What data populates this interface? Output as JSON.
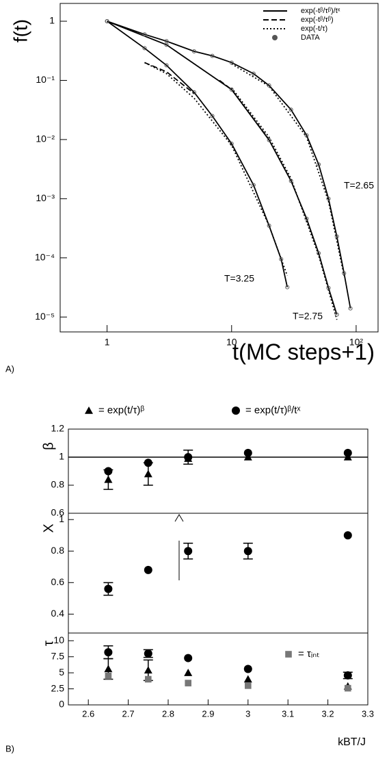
{
  "chart_data": [
    {
      "type": "line",
      "panel_label": "A)",
      "x_label": "t(MC steps+1)",
      "y_label": "f(t)",
      "xscale": "log",
      "yscale": "log",
      "xlim": [
        0.42,
        150
      ],
      "ylim": [
        5.6e-06,
        2
      ],
      "xticks": [
        1,
        10,
        {
          "value": 100,
          "label": "10²"
        }
      ],
      "yticks": [
        1,
        {
          "value": 0.1,
          "label": "10⁻¹"
        },
        {
          "value": 0.01,
          "label": "10⁻²"
        },
        {
          "value": 0.001,
          "label": "10⁻³"
        },
        {
          "value": 0.0001,
          "label": "10⁻⁴"
        },
        {
          "value": 1e-05,
          "label": "10⁻⁵"
        }
      ],
      "annotations": [
        "T=2.65",
        "T=3.25",
        "T=2.75"
      ],
      "series": [
        {
          "name": "exp(-tᵝ/τᵝ)/tˣ",
          "dash": "solid",
          "color": "#000",
          "curves": [
            {
              "x": [
                1,
                2,
                3,
                5,
                7,
                10,
                15,
                20,
                30,
                40,
                50,
                60,
                70,
                80,
                90
              ],
              "values": [
                1,
                0.6,
                0.46,
                0.31,
                0.26,
                0.2,
                0.13,
                0.082,
                0.032,
                0.0118,
                0.0038,
                0.001,
                0.00023,
                5.5e-05,
                1.4e-05
              ]
            },
            {
              "x": [
                1,
                3,
                10,
                20,
                30,
                40,
                50,
                60,
                70
              ],
              "values": [
                1,
                0.4,
                0.07,
                0.0098,
                0.002,
                0.00046,
                0.00012,
                3.1e-05,
                1.1e-05
              ]
            },
            {
              "x": [
                1,
                2,
                3,
                5,
                7,
                10,
                15,
                20,
                25,
                28
              ],
              "values": [
                1,
                0.35,
                0.18,
                0.063,
                0.025,
                0.0085,
                0.0017,
                0.00035,
                9.5e-05,
                3.2e-05
              ]
            }
          ]
        },
        {
          "name": "exp(-tᵝ/τᵝ)",
          "dash": "dashed",
          "color": "#000",
          "curves": [
            {
              "x": [
                2,
                3,
                5
              ],
              "values": [
                0.2,
                0.14,
                0.06
              ]
            },
            {
              "x": [
                8,
                10,
                20
              ],
              "values": [
                0.1,
                0.07,
                0.01
              ]
            }
          ]
        },
        {
          "name": "exp(-t/τ)",
          "dash": "dotted",
          "color": "#000",
          "curves": [
            {
              "x": [
                2,
                3,
                5,
                10,
                20,
                28
              ],
              "values": [
                0.2,
                0.13,
                0.05,
                0.008,
                0.00035,
                5e-05
              ]
            },
            {
              "x": [
                10,
                20,
                30,
                50,
                70
              ],
              "values": [
                0.075,
                0.011,
                0.0022,
                0.00011,
                9e-06
              ]
            },
            {
              "x": [
                10,
                20,
                40,
                60,
                80
              ],
              "values": [
                0.19,
                0.08,
                0.011,
                0.0009,
                5e-05
              ]
            }
          ]
        },
        {
          "name": "DATA",
          "marker": "circle",
          "color": "#555",
          "curves": [
            {
              "x": [
                1,
                2,
                3,
                5,
                7,
                10,
                15,
                20,
                30,
                40,
                50,
                60,
                70,
                80,
                90
              ],
              "values": [
                1,
                0.6,
                0.46,
                0.31,
                0.26,
                0.2,
                0.13,
                0.082,
                0.032,
                0.0118,
                0.0038,
                0.001,
                0.00023,
                5.5e-05,
                1.4e-05
              ]
            },
            {
              "x": [
                1,
                3,
                10,
                20,
                30,
                40,
                50,
                60,
                70
              ],
              "values": [
                1,
                0.4,
                0.07,
                0.0098,
                0.002,
                0.00046,
                0.00012,
                3.1e-05,
                1.1e-05
              ]
            },
            {
              "x": [
                1,
                2,
                3,
                5,
                7,
                10,
                15,
                20,
                25,
                28
              ],
              "values": [
                1,
                0.35,
                0.18,
                0.063,
                0.025,
                0.0085,
                0.0017,
                0.00035,
                9.5e-05,
                3.2e-05
              ]
            }
          ]
        }
      ]
    },
    {
      "type": "scatter",
      "panel_label": "B)",
      "y_label": "β",
      "xlim": [
        2.55,
        3.3
      ],
      "ylim": [
        0.6,
        1.2
      ],
      "yticks": [
        0.6,
        0.8,
        1,
        1.2
      ],
      "reference_line": 1,
      "x": [
        2.65,
        2.75,
        2.85,
        3.0,
        3.25
      ],
      "series": [
        {
          "name": "= exp(t/τ)ᵝ",
          "marker": "triangle",
          "color": "#000",
          "values": [
            0.84,
            0.88,
            0.99,
            1.0,
            1.0
          ],
          "errors": [
            0.07,
            0.08,
            null,
            null,
            null
          ]
        },
        {
          "name": "= exp(t/τ)ᵝ/tˣ",
          "marker": "circle",
          "color": "#000",
          "values": [
            0.9,
            0.96,
            1.0,
            1.03,
            1.03
          ],
          "errors": [
            null,
            null,
            0.05,
            null,
            null
          ]
        }
      ]
    },
    {
      "type": "scatter",
      "y_label": "X",
      "xlim": [
        2.55,
        3.3
      ],
      "ylim": [
        0.28,
        1.04
      ],
      "yticks": [
        0.4,
        0.6,
        0.8,
        1
      ],
      "x": [
        2.65,
        2.75,
        2.85,
        3.0,
        3.25
      ],
      "series": [
        {
          "marker": "circle",
          "color": "#000",
          "values": [
            0.56,
            0.68,
            0.8,
            0.8,
            0.9
          ],
          "errors": [
            0.04,
            null,
            0.05,
            0.05,
            null
          ]
        }
      ]
    },
    {
      "type": "scatter",
      "y_label": "τ",
      "x_label": "kBT/J",
      "xlim": [
        2.55,
        3.3
      ],
      "ylim": [
        0,
        11.2
      ],
      "yticks": [
        0,
        2.5,
        5,
        7.5,
        10
      ],
      "xticks": [
        2.6,
        2.7,
        2.8,
        2.9,
        3,
        3.1,
        3.2,
        3.3
      ],
      "x": [
        2.65,
        2.75,
        2.85,
        3.0,
        3.25
      ],
      "series": [
        {
          "marker": "circle",
          "color": "#000",
          "values": [
            8.2,
            8.0,
            7.3,
            5.6,
            4.6
          ],
          "errors": [
            1.0,
            0.6,
            null,
            null,
            0.5
          ]
        },
        {
          "marker": "triangle",
          "color": "#000",
          "values": [
            5.6,
            5.4,
            5.0,
            4.0,
            2.9
          ],
          "errors": [
            1.6,
            1.6,
            null,
            null,
            null
          ]
        },
        {
          "name": "= τᵢₙₜ",
          "marker": "square",
          "color": "#777",
          "values": [
            4.5,
            4.0,
            3.4,
            3.0,
            2.6
          ],
          "errors": [
            null,
            null,
            null,
            null,
            null
          ]
        }
      ]
    }
  ]
}
